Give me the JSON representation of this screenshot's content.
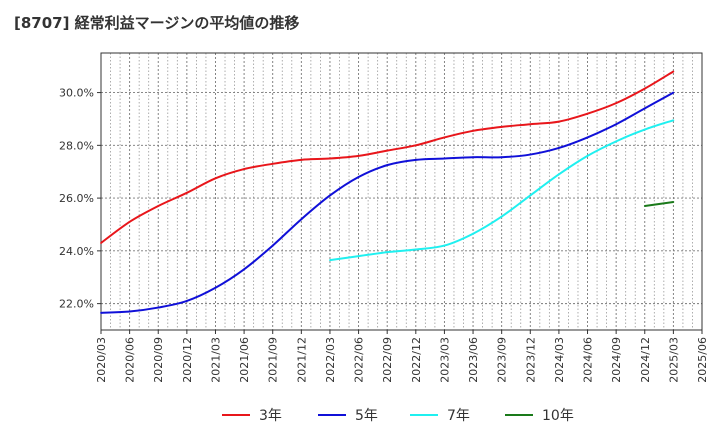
{
  "chart_data": {
    "type": "line",
    "title": "[8707]  経常利益マージンの平均値の推移",
    "xlabel": "",
    "ylabel": "",
    "x_ticks": [
      "2020/03",
      "2020/06",
      "2020/09",
      "2020/12",
      "2021/03",
      "2021/06",
      "2021/09",
      "2021/12",
      "2022/03",
      "2022/06",
      "2022/09",
      "2022/12",
      "2023/03",
      "2023/06",
      "2023/09",
      "2023/12",
      "2024/03",
      "2024/06",
      "2024/09",
      "2024/12",
      "2025/03",
      "2025/06"
    ],
    "y_ticks": [
      22.0,
      24.0,
      26.0,
      28.0,
      30.0
    ],
    "y_tick_labels": [
      "22.0%",
      "24.0%",
      "26.0%",
      "28.0%",
      "30.0%"
    ],
    "ylim": [
      21.0,
      31.5
    ],
    "grid": true,
    "legend_position": "bottom",
    "series": [
      {
        "name": "3年",
        "color": "#e8161b",
        "start_index": 0,
        "values": [
          24.3,
          25.1,
          25.7,
          26.2,
          26.75,
          27.1,
          27.3,
          27.45,
          27.5,
          27.6,
          27.8,
          28.0,
          28.3,
          28.55,
          28.7,
          28.8,
          28.9,
          29.2,
          29.6,
          30.15,
          30.8
        ]
      },
      {
        "name": "5年",
        "color": "#1010d8",
        "start_index": 0,
        "values": [
          21.65,
          21.7,
          21.85,
          22.1,
          22.6,
          23.3,
          24.2,
          25.2,
          26.1,
          26.8,
          27.25,
          27.45,
          27.5,
          27.55,
          27.55,
          27.65,
          27.9,
          28.3,
          28.8,
          29.4,
          30.0
        ]
      },
      {
        "name": "7年",
        "color": "#1ff0f0",
        "start_index": 8,
        "values": [
          23.65,
          23.8,
          23.95,
          24.05,
          24.2,
          24.65,
          25.3,
          26.1,
          26.9,
          27.6,
          28.15,
          28.6,
          28.95
        ]
      },
      {
        "name": "10年",
        "color": "#1a7a1a",
        "start_index": 19,
        "values": [
          25.7,
          25.85
        ]
      }
    ]
  }
}
